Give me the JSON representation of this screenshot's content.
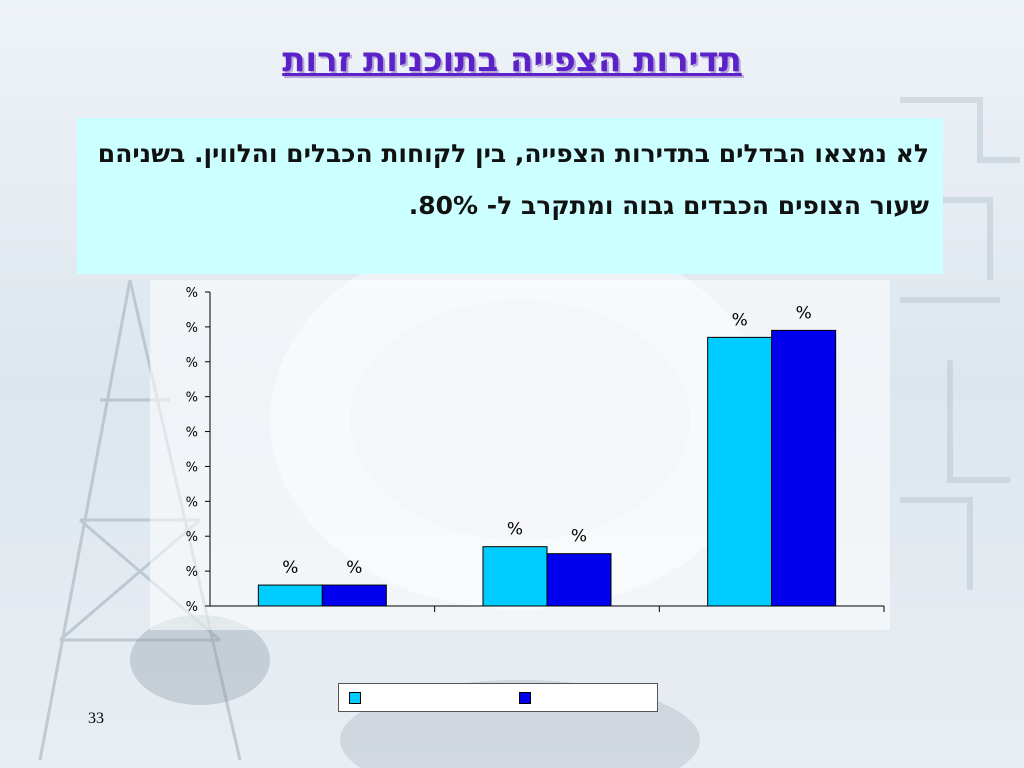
{
  "slide": {
    "title": "תדירות הצפייה בתוכניות זרות",
    "body_text": "לא נמצאו הבדלים בתדירות הצפייה, בין לקוחות הכבלים והלווין. בשניהם שעור הצופים הכבדים גבוה ומתקרב ל- 80%.",
    "page_number": "33"
  },
  "chart_data": {
    "type": "bar",
    "categories": [
      "",
      "",
      ""
    ],
    "series": [
      {
        "name": "",
        "color": "#00ccff",
        "values": [
          6,
          17,
          77
        ],
        "labels": [
          "%",
          "%",
          "%"
        ]
      },
      {
        "name": "",
        "color": "#0000ee",
        "values": [
          6,
          15,
          79
        ],
        "labels": [
          "%",
          "%",
          "%"
        ]
      }
    ],
    "ylim": [
      0,
      90
    ],
    "yticks": [
      0,
      10,
      20,
      30,
      40,
      50,
      60,
      70,
      80,
      90
    ],
    "ytick_labels": [
      "%",
      "%",
      "%",
      "%",
      "%",
      "%",
      "%",
      "%",
      "%",
      "%"
    ],
    "grid": false,
    "legend": "bottom",
    "title": "",
    "xlabel": "",
    "ylabel": ""
  }
}
